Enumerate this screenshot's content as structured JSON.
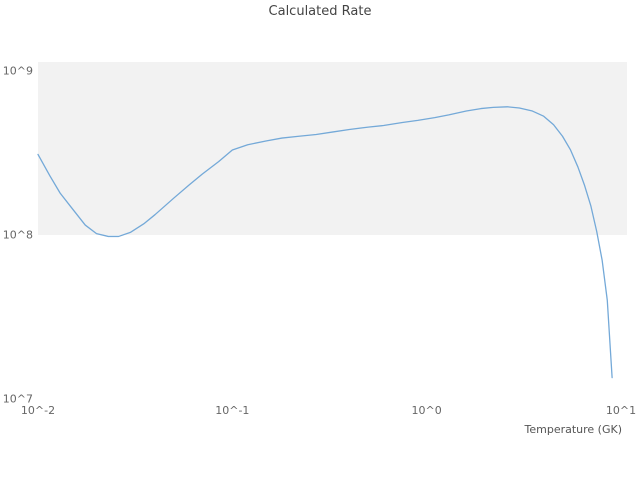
{
  "chart_data": {
    "type": "line",
    "title": "Calculated Rate",
    "xlabel": "Temperature (GK)",
    "ylabel": "",
    "x_scale": "log",
    "y_scale": "log",
    "xlim_log10": [
      -2,
      1
    ],
    "ylim_log10": [
      7,
      9
    ],
    "x_tick_labels": [
      "10^-2",
      "10^-1",
      "10^0",
      "10^1"
    ],
    "x_tick_log10": [
      -2,
      -1,
      0,
      1
    ],
    "y_tick_labels": [
      "10^7",
      "10^8",
      "10^9"
    ],
    "y_tick_log10": [
      7,
      8,
      9
    ],
    "legend": "none",
    "grid": "shaded band over the 10^8 to 10^9 decade",
    "colors": {
      "line": "#74a9d8",
      "band": "#f2f2f2",
      "title_text": "#444444",
      "tick_text": "#666666"
    },
    "series": [
      {
        "name": "calculated-rate",
        "x": [
          0.01,
          0.0115,
          0.013,
          0.015,
          0.0175,
          0.02,
          0.023,
          0.026,
          0.03,
          0.035,
          0.04,
          0.05,
          0.06,
          0.07,
          0.085,
          0.1,
          0.12,
          0.15,
          0.18,
          0.22,
          0.27,
          0.33,
          0.4,
          0.5,
          0.6,
          0.75,
          0.9,
          1.1,
          1.3,
          1.6,
          1.9,
          2.2,
          2.6,
          3.0,
          3.5,
          4.0,
          4.5,
          5.0,
          5.5,
          6.0,
          6.5,
          7.0,
          7.5,
          8.0,
          8.5,
          9.0
        ],
        "y": [
          310000000.0,
          230000000.0,
          180000000.0,
          145000000.0,
          115000000.0,
          102000000.0,
          98000000.0,
          98000000.0,
          104000000.0,
          117000000.0,
          133000000.0,
          168000000.0,
          202000000.0,
          235000000.0,
          280000000.0,
          330000000.0,
          355000000.0,
          375000000.0,
          390000000.0,
          400000000.0,
          410000000.0,
          425000000.0,
          440000000.0,
          455000000.0,
          465000000.0,
          485000000.0,
          500000000.0,
          520000000.0,
          540000000.0,
          570000000.0,
          590000000.0,
          600000000.0,
          605000000.0,
          595000000.0,
          570000000.0,
          530000000.0,
          470000000.0,
          400000000.0,
          330000000.0,
          260000000.0,
          200000000.0,
          150000000.0,
          105000000.0,
          70000000.0,
          40000000.0,
          13500000.0
        ]
      }
    ]
  }
}
